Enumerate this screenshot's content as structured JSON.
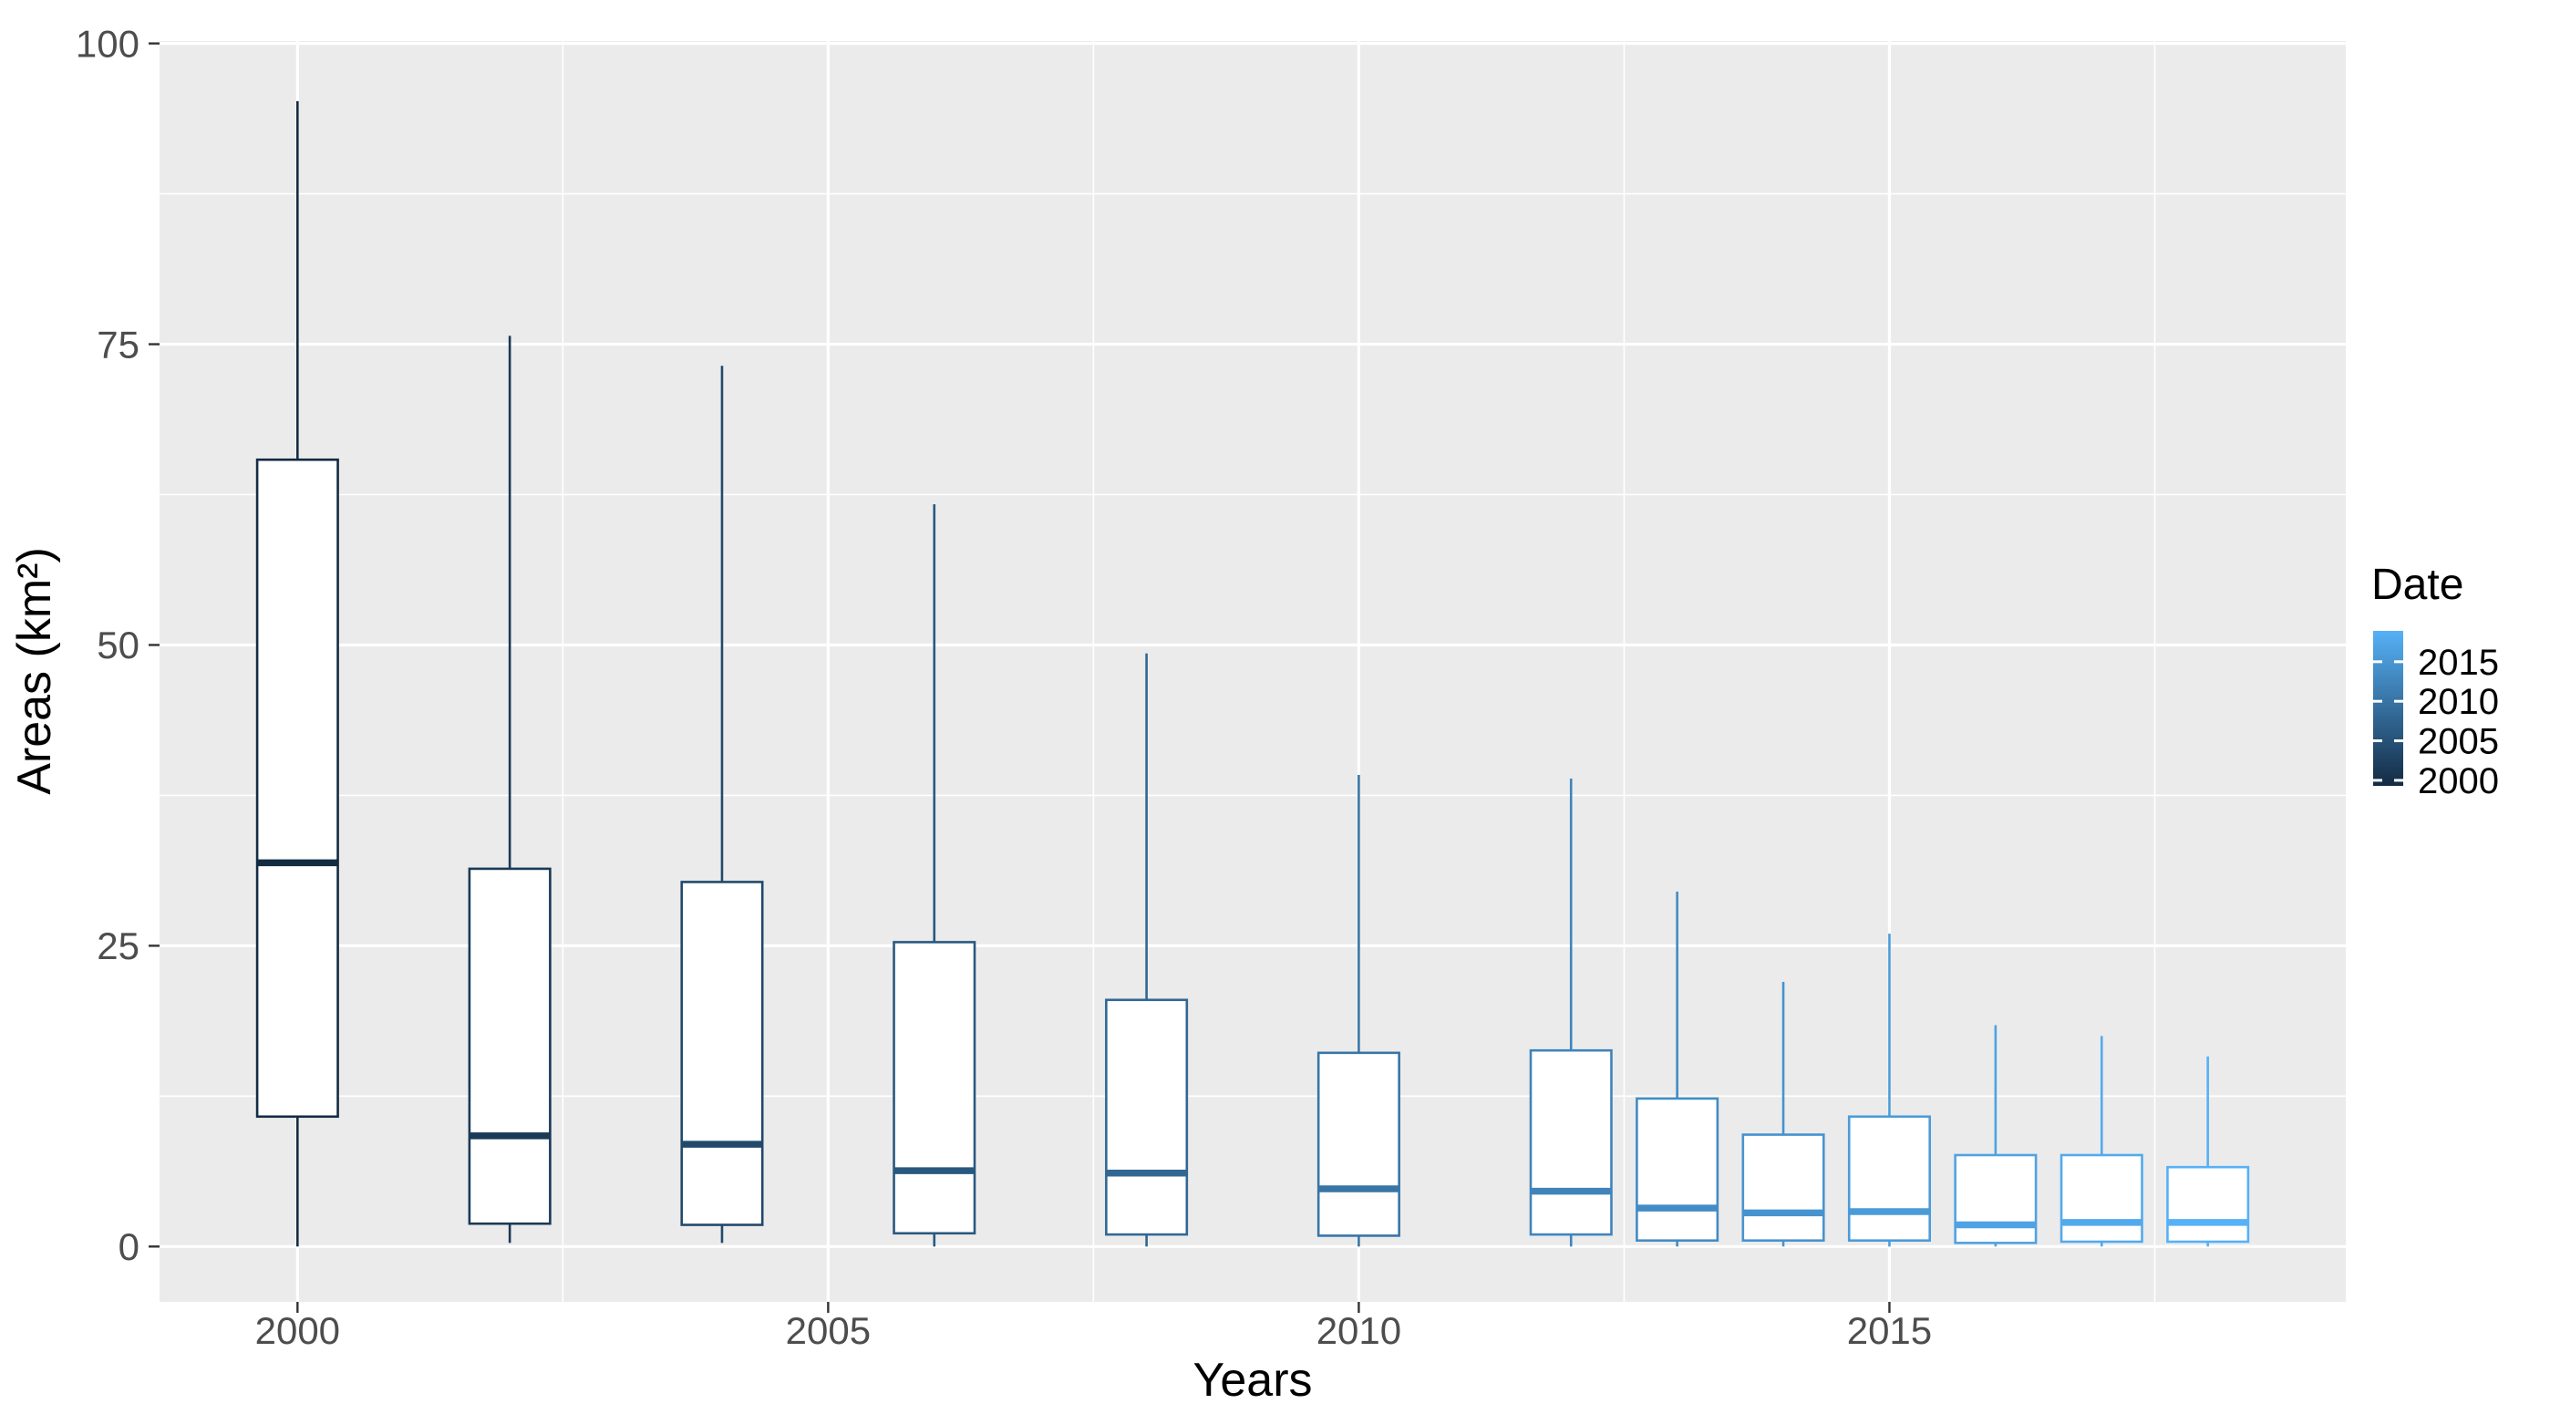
{
  "colors": {
    "panel_bg": "#EBEBEB",
    "grid": "#FFFFFF",
    "tick_mark": "#333333",
    "tick_label": "#4D4D4D",
    "axis_title": "#000000",
    "box_fill": "#FFFFFF",
    "gradient_low": "#132B43",
    "gradient_high": "#56B1F7"
  },
  "chart_data": {
    "type": "boxplot",
    "title": "",
    "xlabel": "Years",
    "ylabel": "Areas (km²)",
    "grid": true,
    "xlim": [
      1998.7,
      2019.3
    ],
    "ylim": [
      -4.6,
      100.2
    ],
    "x_ticks": [
      2000,
      2005,
      2010,
      2015
    ],
    "y_ticks": [
      0,
      25,
      50,
      75,
      100
    ],
    "x_minor": [
      2002.5,
      2007.5,
      2012.5,
      2017.5
    ],
    "y_minor": [
      12.5,
      37.5,
      62.5,
      87.5
    ],
    "box_width_years": 0.76,
    "legend": {
      "title": "Date",
      "position": "right",
      "labels": [
        2015,
        2010,
        2005,
        2000
      ],
      "limits": [
        1999.3,
        2018.9
      ],
      "low_color": "#132B43",
      "high_color": "#56B1F7"
    },
    "series": [
      {
        "year": 2000,
        "min": 0,
        "q1": 10.8,
        "median": 31.9,
        "q3": 65.4,
        "max": 95.2,
        "color": "#132B43"
      },
      {
        "year": 2002,
        "min": 0.3,
        "q1": 1.9,
        "median": 9.2,
        "q3": 31.4,
        "max": 75.7,
        "color": "#1A3A57"
      },
      {
        "year": 2004,
        "min": 0.3,
        "q1": 1.8,
        "median": 8.5,
        "q3": 30.3,
        "max": 73.2,
        "color": "#22496B"
      },
      {
        "year": 2006,
        "min": 0,
        "q1": 1.1,
        "median": 6.3,
        "q3": 25.3,
        "max": 61.7,
        "color": "#29587F"
      },
      {
        "year": 2008,
        "min": 0,
        "q1": 1.0,
        "median": 6.1,
        "q3": 20.5,
        "max": 49.3,
        "color": "#316793"
      },
      {
        "year": 2010,
        "min": 0,
        "q1": 0.9,
        "median": 4.8,
        "q3": 16.1,
        "max": 39.2,
        "color": "#3875A7"
      },
      {
        "year": 2012,
        "min": 0,
        "q1": 1.0,
        "median": 4.6,
        "q3": 16.3,
        "max": 38.9,
        "color": "#4084BB"
      },
      {
        "year": 2013,
        "min": 0,
        "q1": 0.5,
        "median": 3.2,
        "q3": 12.3,
        "max": 29.5,
        "color": "#438CC5"
      },
      {
        "year": 2014,
        "min": 0,
        "q1": 0.5,
        "median": 2.8,
        "q3": 9.3,
        "max": 22.0,
        "color": "#4793CF"
      },
      {
        "year": 2015,
        "min": 0,
        "q1": 0.5,
        "median": 2.9,
        "q3": 10.8,
        "max": 26.0,
        "color": "#4B9BD9"
      },
      {
        "year": 2016,
        "min": 0,
        "q1": 0.3,
        "median": 1.8,
        "q3": 7.6,
        "max": 18.4,
        "color": "#4FA2E3"
      },
      {
        "year": 2017,
        "min": 0,
        "q1": 0.4,
        "median": 2.0,
        "q3": 7.6,
        "max": 17.5,
        "color": "#52AAED"
      },
      {
        "year": 2018,
        "min": 0,
        "q1": 0.4,
        "median": 2.0,
        "q3": 6.6,
        "max": 15.8,
        "color": "#56B1F7"
      }
    ]
  }
}
